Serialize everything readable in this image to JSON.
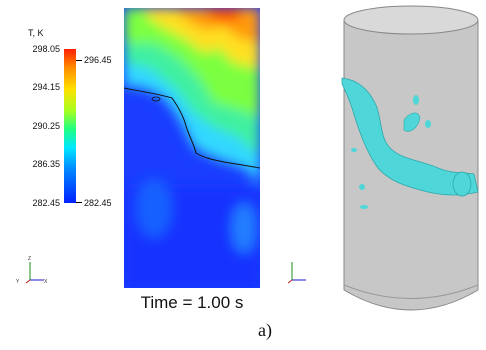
{
  "legend": {
    "title": "T, K",
    "ticks": [
      "298.05",
      "294.15",
      "290.25",
      "286.35",
      "282.45"
    ],
    "field_max": "296.45",
    "field_min": "282.45"
  },
  "caption": {
    "time": "Time = 1.00 s",
    "sub": "a)"
  },
  "triad": {
    "x": "X",
    "y": "Y",
    "z": "Z"
  },
  "colors": {
    "hot": "#ff2000",
    "cold": "#0020ff",
    "iso_surface": "#4fd6d8",
    "cylinder": "#c8c8c8"
  }
}
